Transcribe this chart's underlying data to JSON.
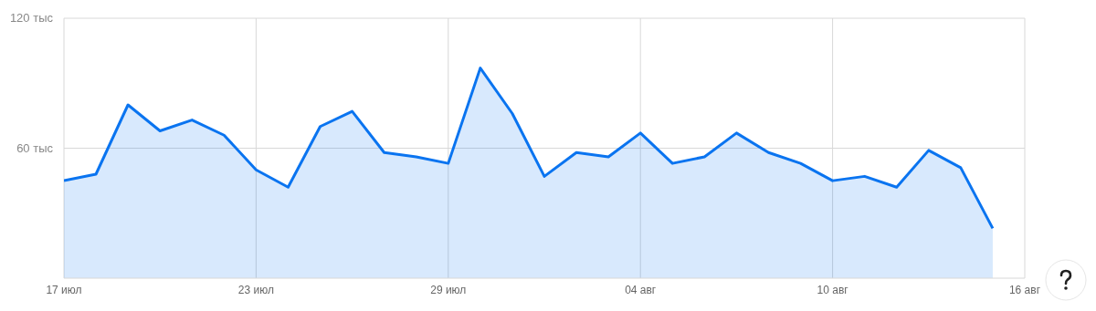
{
  "chart_data": {
    "type": "area",
    "color": "#0a74f0",
    "x": [
      "--07-17",
      "--07-18",
      "--07-19",
      "--07-20",
      "--07-21",
      "--07-22",
      "--07-23",
      "--07-24",
      "--07-25",
      "--07-26",
      "--07-27",
      "--07-28",
      "--07-29",
      "--07-30",
      "--07-31",
      "--08-01",
      "--08-02",
      "--08-03",
      "--08-04",
      "--08-05",
      "--08-06",
      "--08-07",
      "--08-08",
      "--08-09",
      "--08-10",
      "--08-11",
      "--08-12",
      "--08-13",
      "--08-14",
      "--08-15"
    ],
    "values": [
      45,
      48,
      80,
      68,
      73,
      66,
      50,
      42,
      70,
      77,
      58,
      56,
      53,
      97,
      76,
      47,
      58,
      56,
      67,
      53,
      56,
      67,
      58,
      53,
      45,
      47,
      42,
      59,
      51,
      23
    ],
    "xlim": [
      "--07-17",
      "--08-16"
    ],
    "xticks": [
      {
        "value": "--07-17",
        "label": "17 июл"
      },
      {
        "value": "--07-23",
        "label": "23 июл"
      },
      {
        "value": "--07-29",
        "label": "29 июл"
      },
      {
        "value": "--08-04",
        "label": "04 авг"
      },
      {
        "value": "--08-10",
        "label": "10 авг"
      },
      {
        "value": "--08-16",
        "label": "16 авг"
      }
    ],
    "ylim": [
      0,
      120
    ],
    "yticks": [
      {
        "value": 60,
        "label": "60 тыс"
      },
      {
        "value": 120,
        "label": "120 тыс"
      }
    ],
    "grid": true,
    "legend": false,
    "marker": "none",
    "line_style": "solid"
  }
}
